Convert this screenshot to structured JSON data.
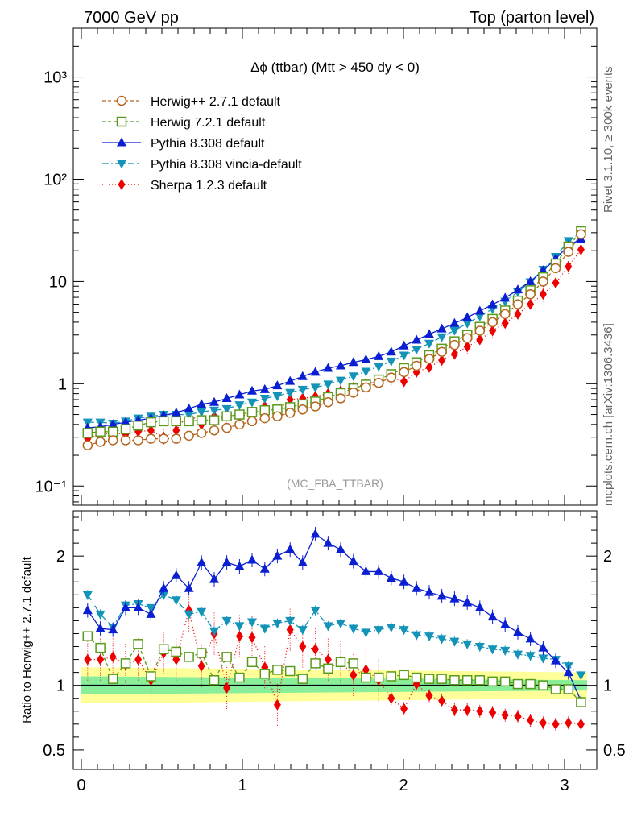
{
  "header": {
    "left": "7000 GeV pp",
    "right": "Top (parton level)"
  },
  "side_labels": {
    "rivet": "Rivet 3.1.10, ≥ 300k events",
    "mcplots": "mcplots.cern.ch [arXiv:1306.3436]"
  },
  "chart_data": [
    {
      "type": "line",
      "title": "Δϕ (ttbar) (Mtt > 450 dy < 0)",
      "watermark": "(MC_FBA_TTBAR)",
      "yscale": "log",
      "xlim": [
        -0.05,
        3.2
      ],
      "ylim": [
        0.065,
        3000
      ],
      "yticks": [
        0.1,
        1,
        10,
        100,
        1000
      ],
      "ytick_labels": [
        "10⁻¹",
        "1",
        "10",
        "10²",
        "10³"
      ],
      "legend_position": "top-left",
      "x": [
        0.039,
        0.118,
        0.196,
        0.275,
        0.353,
        0.432,
        0.511,
        0.589,
        0.668,
        0.746,
        0.825,
        0.903,
        0.982,
        1.06,
        1.139,
        1.217,
        1.296,
        1.374,
        1.453,
        1.532,
        1.61,
        1.689,
        1.767,
        1.846,
        1.924,
        2.003,
        2.081,
        2.16,
        2.238,
        2.317,
        2.396,
        2.474,
        2.553,
        2.631,
        2.71,
        2.788,
        2.867,
        2.945,
        3.024,
        3.102
      ],
      "series": [
        {
          "name": "Herwig++ 2.7.1 default",
          "color": "#b5651d",
          "marker": "circle-open",
          "dash": "4,3",
          "values": [
            0.25,
            0.27,
            0.28,
            0.28,
            0.28,
            0.29,
            0.29,
            0.29,
            0.31,
            0.33,
            0.35,
            0.37,
            0.4,
            0.43,
            0.46,
            0.48,
            0.52,
            0.56,
            0.6,
            0.66,
            0.72,
            0.82,
            0.92,
            1.02,
            1.15,
            1.3,
            1.5,
            1.75,
            2.05,
            2.4,
            2.8,
            3.3,
            4.0,
            4.8,
            6.0,
            7.5,
            10.0,
            13.5,
            19.5,
            29.0
          ]
        },
        {
          "name": "Herwig 7.2.1 default",
          "color": "#5a9a1a",
          "marker": "square-open",
          "dash": "4,3",
          "values": [
            0.33,
            0.34,
            0.34,
            0.36,
            0.39,
            0.42,
            0.43,
            0.43,
            0.43,
            0.44,
            0.44,
            0.48,
            0.5,
            0.53,
            0.55,
            0.56,
            0.59,
            0.63,
            0.67,
            0.74,
            0.81,
            0.9,
            0.98,
            1.1,
            1.24,
            1.42,
            1.62,
            1.9,
            2.2,
            2.6,
            3.0,
            3.6,
            4.3,
            5.2,
            6.5,
            8.2,
            11.0,
            15.0,
            22.0,
            31.0
          ]
        },
        {
          "name": "Pythia 8.308 default",
          "color": "#0a1fd1",
          "marker": "triangle-up",
          "dash": "",
          "values": [
            0.37,
            0.38,
            0.4,
            0.42,
            0.44,
            0.46,
            0.49,
            0.52,
            0.57,
            0.63,
            0.66,
            0.72,
            0.78,
            0.85,
            0.88,
            0.96,
            1.06,
            1.18,
            1.3,
            1.42,
            1.5,
            1.62,
            1.72,
            1.85,
            2.05,
            2.35,
            2.68,
            3.05,
            3.45,
            3.9,
            4.45,
            5.15,
            5.95,
            6.9,
            8.3,
            10.0,
            12.8,
            16.7,
            22.5,
            26.0
          ]
        },
        {
          "name": "Pythia 8.308 vincia-default",
          "color": "#1493b8",
          "marker": "triangle-down",
          "dash": "8,3,2,3",
          "values": [
            0.42,
            0.42,
            0.41,
            0.43,
            0.46,
            0.48,
            0.5,
            0.5,
            0.5,
            0.53,
            0.55,
            0.57,
            0.62,
            0.66,
            0.72,
            0.76,
            0.82,
            0.88,
            0.92,
            0.99,
            1.08,
            1.19,
            1.32,
            1.48,
            1.66,
            1.9,
            2.17,
            2.48,
            2.87,
            3.32,
            3.9,
            4.58,
            5.4,
            6.4,
            7.9,
            9.9,
            13.1,
            17.5,
            25.0,
            30.0
          ]
        },
        {
          "name": "Sherpa 1.2.3 default",
          "color": "#ee0000",
          "marker": "diamond",
          "dash": "1,3",
          "values": [
            0.29,
            0.32,
            0.33,
            0.32,
            0.34,
            0.35,
            0.3,
            0.35,
            0.52,
            0.4,
            0.48,
            0.48,
            0.5,
            0.48,
            0.6,
            0.55,
            0.7,
            0.72,
            0.75,
            0.8,
            0.85,
            0.92,
            1.0,
            1.05,
            1.15,
            1.05,
            1.3,
            1.45,
            1.7,
            1.95,
            2.3,
            2.7,
            3.3,
            3.9,
            4.8,
            6.0,
            7.5,
            9.7,
            14.0,
            20.5
          ]
        }
      ]
    },
    {
      "type": "line",
      "ylabel": "Ratio to Herwig++ 2.7.1 default",
      "xlim": [
        -0.05,
        3.2
      ],
      "ylim": [
        0.35,
        2.35
      ],
      "xticks": [
        0,
        1,
        2,
        3
      ],
      "yticks": [
        0.5,
        1,
        2
      ],
      "reference_line": 1,
      "band": {
        "green": [
          0.93,
          1.07
        ],
        "yellow": [
          0.86,
          1.14
        ]
      },
      "series": [
        {
          "name": "Herwig 7.2.1 default",
          "values": [
            1.38,
            1.29,
            1.05,
            1.17,
            1.32,
            1.07,
            1.28,
            1.26,
            1.22,
            1.25,
            1.04,
            1.22,
            1.06,
            1.18,
            1.09,
            1.12,
            1.11,
            1.05,
            1.17,
            1.13,
            1.18,
            1.17,
            1.06,
            1.06,
            1.07,
            1.08,
            1.06,
            1.05,
            1.05,
            1.04,
            1.04,
            1.04,
            1.03,
            1.03,
            1.01,
            1.01,
            1.0,
            0.97,
            0.97,
            0.87
          ]
        },
        {
          "name": "Pythia 8.308 default",
          "values": [
            1.58,
            1.44,
            1.43,
            1.6,
            1.6,
            1.55,
            1.75,
            1.85,
            1.75,
            1.95,
            1.82,
            1.95,
            1.92,
            1.97,
            1.9,
            2.0,
            2.05,
            1.95,
            2.17,
            2.1,
            2.05,
            1.96,
            1.88,
            1.88,
            1.83,
            1.8,
            1.75,
            1.72,
            1.69,
            1.67,
            1.64,
            1.6,
            1.53,
            1.47,
            1.41,
            1.36,
            1.29,
            1.19,
            1.1,
            0.88
          ]
        },
        {
          "name": "Pythia 8.308 vincia-default",
          "values": [
            1.7,
            1.55,
            1.45,
            1.62,
            1.63,
            1.6,
            1.7,
            1.66,
            1.55,
            1.57,
            1.42,
            1.5,
            1.46,
            1.49,
            1.44,
            1.48,
            1.5,
            1.43,
            1.58,
            1.46,
            1.48,
            1.44,
            1.41,
            1.43,
            1.45,
            1.43,
            1.39,
            1.38,
            1.36,
            1.34,
            1.32,
            1.3,
            1.28,
            1.27,
            1.24,
            1.23,
            1.21,
            1.2,
            1.15,
            1.08
          ]
        },
        {
          "name": "Sherpa 1.2.3 default",
          "values": [
            1.2,
            1.2,
            1.22,
            1.16,
            1.2,
            1.04,
            1.25,
            1.2,
            1.58,
            1.15,
            1.4,
            0.98,
            1.38,
            1.37,
            1.14,
            0.85,
            1.43,
            1.3,
            1.28,
            1.2,
            1.18,
            1.08,
            1.12,
            1.04,
            0.9,
            0.82,
            1.01,
            0.92,
            0.88,
            0.81,
            0.81,
            0.8,
            0.79,
            0.77,
            0.76,
            0.73,
            0.71,
            0.7,
            0.71,
            0.7
          ]
        }
      ]
    }
  ]
}
